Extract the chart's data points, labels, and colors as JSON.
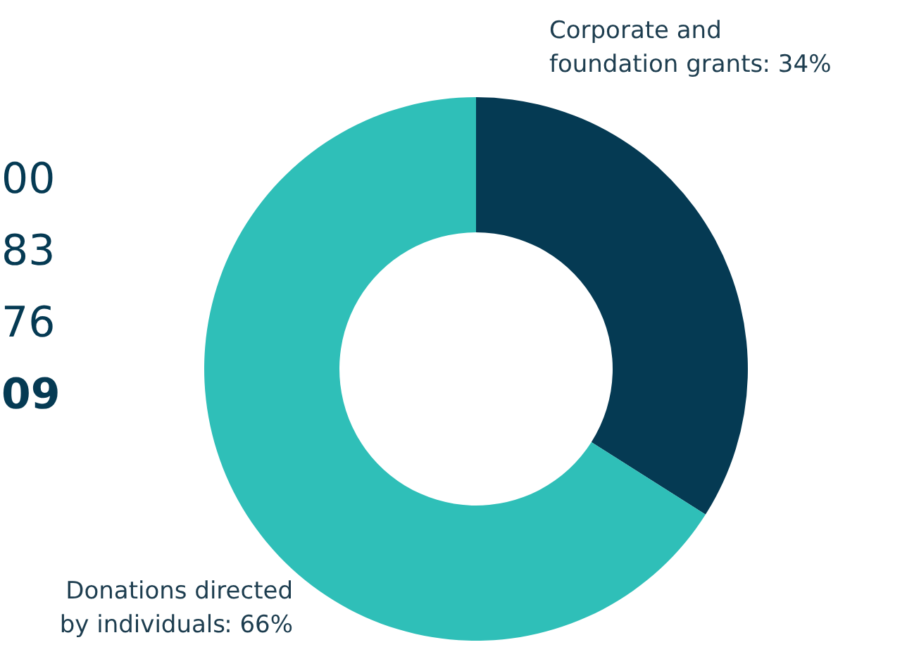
{
  "chart_data": {
    "type": "donut",
    "categories": [
      "Corporate and foundation grants",
      "Donations directed by individuals"
    ],
    "values": [
      34,
      66
    ],
    "value_labels": [
      ": 34%",
      ": 66%"
    ],
    "colors": [
      "#053a53",
      "#2fbfb8"
    ],
    "annotations": [
      "00",
      "83",
      "76",
      "09"
    ]
  }
}
